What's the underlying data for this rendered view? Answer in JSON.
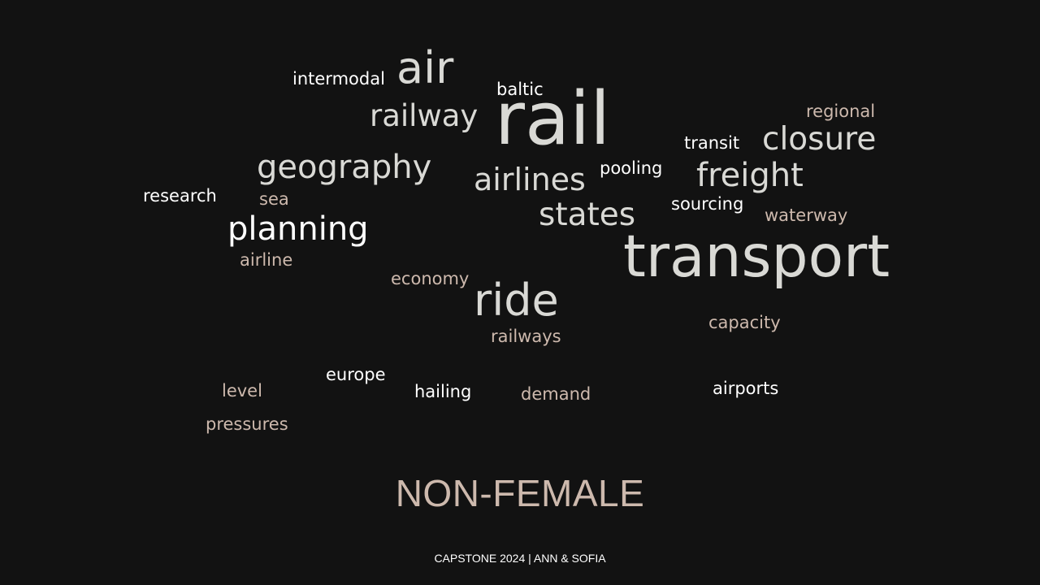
{
  "words": {
    "intermodal": "intermodal",
    "air": "air",
    "baltic": "baltic",
    "railway": "railway",
    "rail": "rail",
    "regional": "regional",
    "transit": "transit",
    "closure": "closure",
    "geography": "geography",
    "airlines": "airlines",
    "pooling": "pooling",
    "freight": "freight",
    "research": "research",
    "sea": "sea",
    "sourcing": "sourcing",
    "states": "states",
    "waterway": "waterway",
    "planning": "planning",
    "transport": "transport",
    "airline": "airline",
    "economy": "economy",
    "ride": "ride",
    "railways": "railways",
    "capacity": "capacity",
    "europe": "europe",
    "level": "level",
    "hailing": "hailing",
    "demand": "demand",
    "airports": "airports",
    "pressures": "pressures"
  },
  "colors": {
    "background": "#121212",
    "white": "#ffffff",
    "grey": "#d9d9d5",
    "tan": "#cdb9ad"
  },
  "title": "NON-FEMALE",
  "footer": "CAPSTONE 2024 | ANN & SOFIA"
}
